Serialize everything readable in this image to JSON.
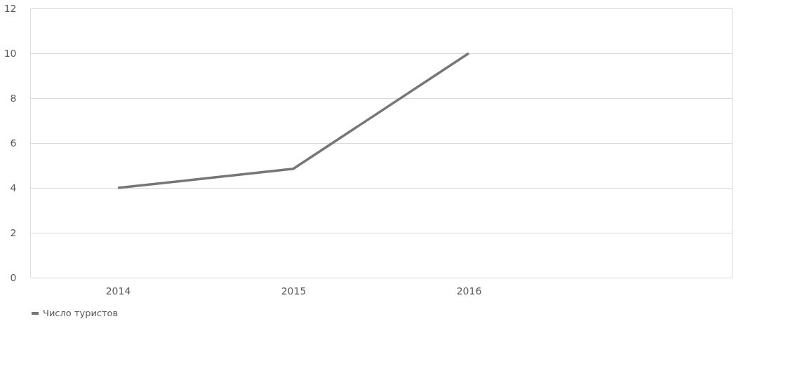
{
  "chart_data": {
    "type": "line",
    "categories": [
      "2014",
      "2015",
      "2016",
      null
    ],
    "series": [
      {
        "name": "Число туристов",
        "color": "#767676",
        "values": [
          4,
          4.85,
          10,
          null
        ]
      }
    ],
    "ylim": [
      0,
      12
    ],
    "yticks": [
      0,
      2,
      4,
      6,
      8,
      10,
      12
    ],
    "grid": "y",
    "legend": "bottom",
    "marker": "none",
    "line_style": "solid"
  }
}
